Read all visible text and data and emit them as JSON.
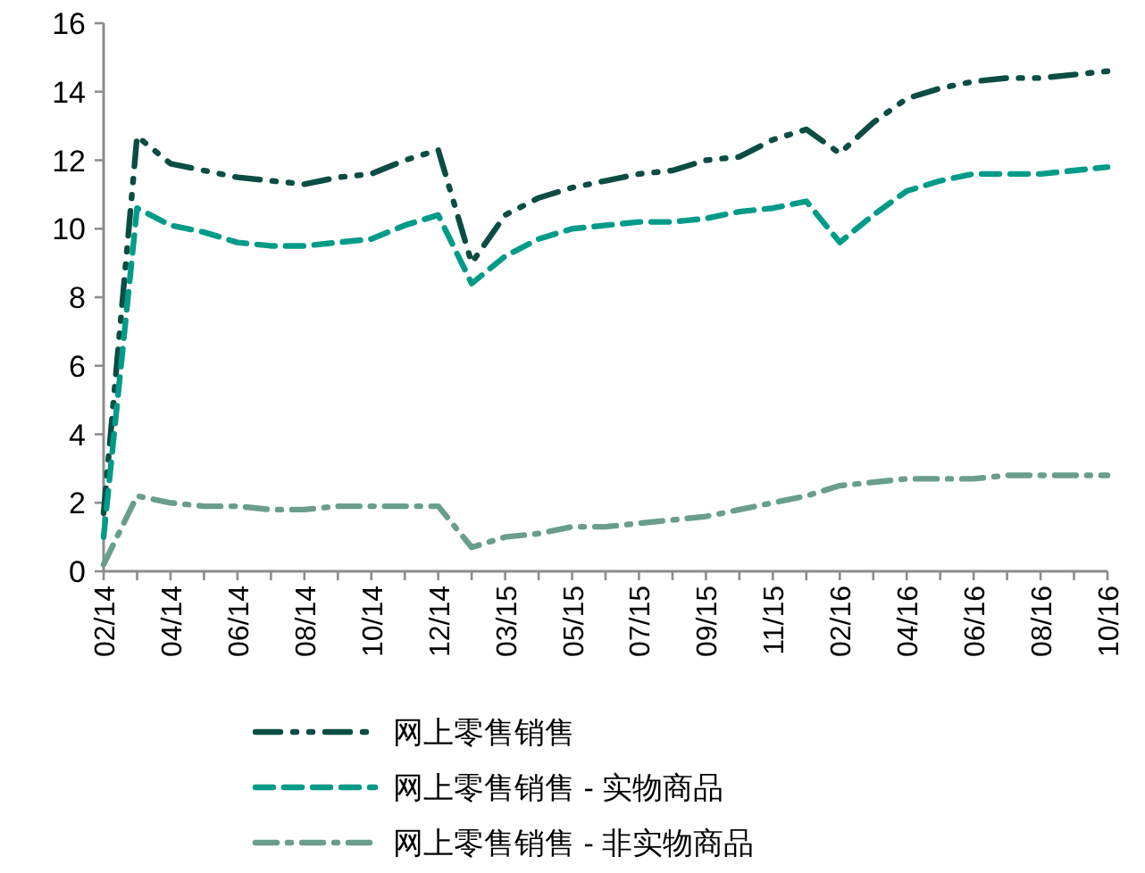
{
  "chart_data": {
    "type": "line",
    "categories": [
      "02/14",
      null,
      "04/14",
      null,
      "06/14",
      null,
      "08/14",
      null,
      "10/14",
      null,
      "12/14",
      null,
      "03/15",
      null,
      "05/15",
      null,
      "07/15",
      null,
      "09/15",
      null,
      "11/15",
      null,
      "02/16",
      null,
      "04/16",
      null,
      "06/16",
      null,
      "08/16",
      null,
      "10/16"
    ],
    "series": [
      {
        "name": "网上零售销售",
        "color": "#0b4d43",
        "line_style": "dashdotdot",
        "values": [
          1.7,
          12.7,
          11.9,
          11.7,
          11.5,
          11.4,
          11.3,
          11.5,
          11.6,
          12.0,
          12.3,
          9.0,
          10.4,
          10.9,
          11.2,
          11.4,
          11.6,
          11.7,
          12.0,
          12.1,
          12.6,
          12.9,
          12.2,
          13.1,
          13.8,
          14.1,
          14.3,
          14.4,
          14.4,
          14.5,
          14.6
        ]
      },
      {
        "name": "网上零售销售 - 实物商品",
        "color": "#009b88",
        "line_style": "dashed",
        "values": [
          1.0,
          10.6,
          10.1,
          9.9,
          9.6,
          9.5,
          9.5,
          9.6,
          9.7,
          10.1,
          10.4,
          8.4,
          9.2,
          9.7,
          10.0,
          10.1,
          10.2,
          10.2,
          10.3,
          10.5,
          10.6,
          10.8,
          9.6,
          10.4,
          11.1,
          11.4,
          11.6,
          11.6,
          11.6,
          11.7,
          11.8
        ]
      },
      {
        "name": "网上零售销售 - 非实物商品",
        "color": "#6a9e8c",
        "line_style": "dashdot",
        "values": [
          0.2,
          2.2,
          2.0,
          1.9,
          1.9,
          1.8,
          1.8,
          1.9,
          1.9,
          1.9,
          1.9,
          0.7,
          1.0,
          1.1,
          1.3,
          1.3,
          1.4,
          1.5,
          1.6,
          1.8,
          2.0,
          2.2,
          2.5,
          2.6,
          2.7,
          2.7,
          2.7,
          2.8,
          2.8,
          2.8,
          2.8
        ]
      }
    ],
    "ylim": [
      0,
      16
    ],
    "yticks": [
      0,
      2,
      4,
      6,
      8,
      10,
      12,
      14,
      16
    ],
    "grid": false,
    "legend": "bottom"
  }
}
